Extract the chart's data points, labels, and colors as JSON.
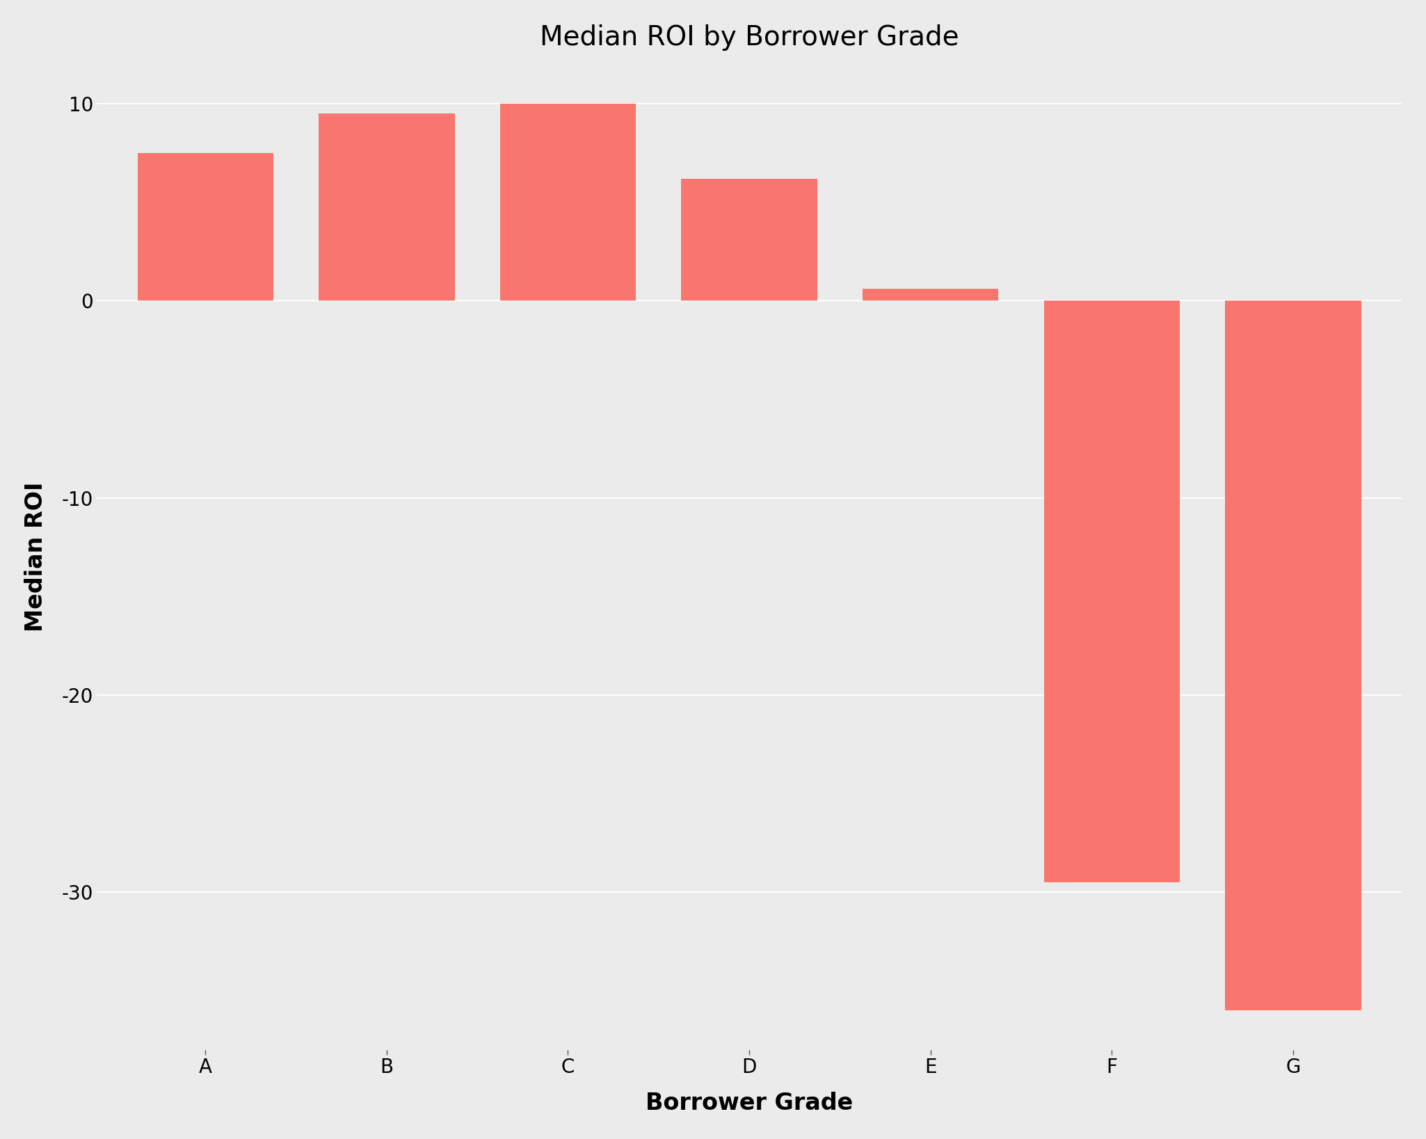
{
  "title": "Median ROI by Borrower Grade",
  "xlabel": "Borrower Grade",
  "ylabel": "Median ROI",
  "categories": [
    "A",
    "B",
    "C",
    "D",
    "E",
    "F",
    "G"
  ],
  "values": [
    7.5,
    9.5,
    10.0,
    6.2,
    0.6,
    -29.5,
    -36.0
  ],
  "bar_color": "#F8766D",
  "background_color": "#EBEBEB",
  "panel_background": "#EBEBEB",
  "grid_color": "#FFFFFF",
  "ylim": [
    -38,
    12
  ],
  "yticks": [
    10,
    0,
    -10,
    -20,
    -30
  ],
  "title_fontsize": 28,
  "axis_label_fontsize": 24,
  "tick_fontsize": 20
}
